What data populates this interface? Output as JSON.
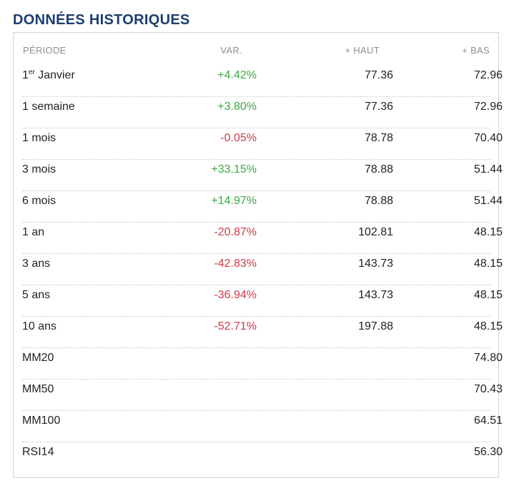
{
  "title": "DONNÉES HISTORIQUES",
  "headers": {
    "periode": "PÉRIODE",
    "var": "VAR.",
    "haut": "+ HAUT",
    "bas": "+ BAS"
  },
  "rows": [
    {
      "label_num": "1",
      "label_sup": "er",
      "label_rest": " Janvier",
      "var": "+4.42%",
      "trend": "pos",
      "haut": "77.36",
      "bas": "72.96"
    },
    {
      "label": "1 semaine",
      "var": "+3.80%",
      "trend": "pos",
      "haut": "77.36",
      "bas": "72.96"
    },
    {
      "label": "1 mois",
      "var": "-0.05%",
      "trend": "neg",
      "haut": "78.78",
      "bas": "70.40"
    },
    {
      "label": "3 mois",
      "var": "+33.15%",
      "trend": "pos",
      "haut": "78.88",
      "bas": "51.44"
    },
    {
      "label": "6 mois",
      "var": "+14.97%",
      "trend": "pos",
      "haut": "78.88",
      "bas": "51.44"
    },
    {
      "label": "1 an",
      "var": "-20.87%",
      "trend": "neg",
      "haut": "102.81",
      "bas": "48.15"
    },
    {
      "label": "3 ans",
      "var": "-42.83%",
      "trend": "neg",
      "haut": "143.73",
      "bas": "48.15"
    },
    {
      "label": "5 ans",
      "var": "-36.94%",
      "trend": "neg",
      "haut": "143.73",
      "bas": "48.15"
    },
    {
      "label": "10 ans",
      "var": "-52.71%",
      "trend": "neg",
      "haut": "197.88",
      "bas": "48.15"
    },
    {
      "label": "MM20",
      "var": "",
      "haut": "",
      "bas": "74.80"
    },
    {
      "label": "MM50",
      "var": "",
      "haut": "",
      "bas": "70.43"
    },
    {
      "label": "MM100",
      "var": "",
      "haut": "",
      "bas": "64.51"
    },
    {
      "label": "RSI14",
      "var": "",
      "haut": "",
      "bas": "56.30"
    }
  ],
  "colors": {
    "title": "#1c3f6e",
    "positive": "#3aa845",
    "negative": "#d0394a",
    "header_text": "#8a8f96",
    "border": "#cfd4da"
  }
}
